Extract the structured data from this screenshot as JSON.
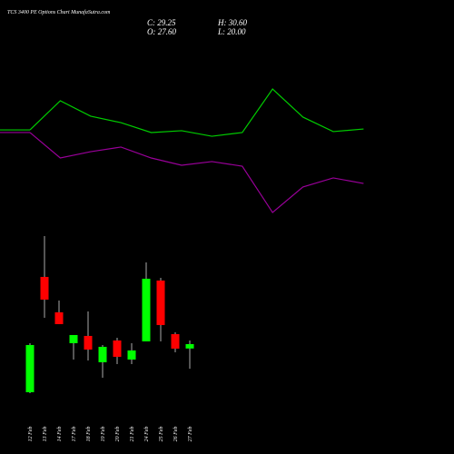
{
  "chart_data": [
    {
      "type": "line",
      "ylim": [
        0,
        100
      ],
      "series": [
        {
          "color": "#00cc00",
          "values": [
            62.9,
            81.8,
            71.8,
            67.6,
            61.2,
            62.4,
            58.8,
            61.2,
            89.4,
            71.2,
            61.8,
            63.5
          ]
        },
        {
          "color": "#990099",
          "values": [
            61.2,
            44.7,
            48.8,
            51.8,
            44.7,
            40.0,
            42.4,
            39.4,
            9.4,
            25.9,
            31.8,
            28.2
          ]
        }
      ]
    },
    {
      "type": "candlestick",
      "title": "TCS 3400 PE Options Chart MunafaSutra.com",
      "ohlc_labels": [
        "C: 29.25",
        "H: 30.60",
        "O: 27.60",
        "L: 20.00"
      ],
      "categories": [
        "12 Feb",
        "13 Feb",
        "14 Feb",
        "17 Feb",
        "18 Feb",
        "19 Feb",
        "20 Feb",
        "21 Feb",
        "24 Feb",
        "25 Feb",
        "26 Feb",
        "27 Feb"
      ],
      "open": [
        11.23,
        54.41,
        41.15,
        29.59,
        32.31,
        22.45,
        30.61,
        23.47,
        30.27,
        53.05,
        32.99,
        27.6
      ],
      "high": [
        29.59,
        69.71,
        45.57,
        32.65,
        41.49,
        28.91,
        31.63,
        29.59,
        59.85,
        54.07,
        33.67,
        30.6
      ],
      "low": [
        10.89,
        39.11,
        36.73,
        23.47,
        23.13,
        16.67,
        21.77,
        21.77,
        30.27,
        30.27,
        26.19,
        20.0
      ],
      "close": [
        28.91,
        45.91,
        36.73,
        32.65,
        27.21,
        28.23,
        24.49,
        26.87,
        53.73,
        36.39,
        27.55,
        29.25
      ],
      "up_color": "#00ff00",
      "down_color": "#ff0000",
      "ylim": [
        8.5,
        71.4
      ]
    }
  ]
}
